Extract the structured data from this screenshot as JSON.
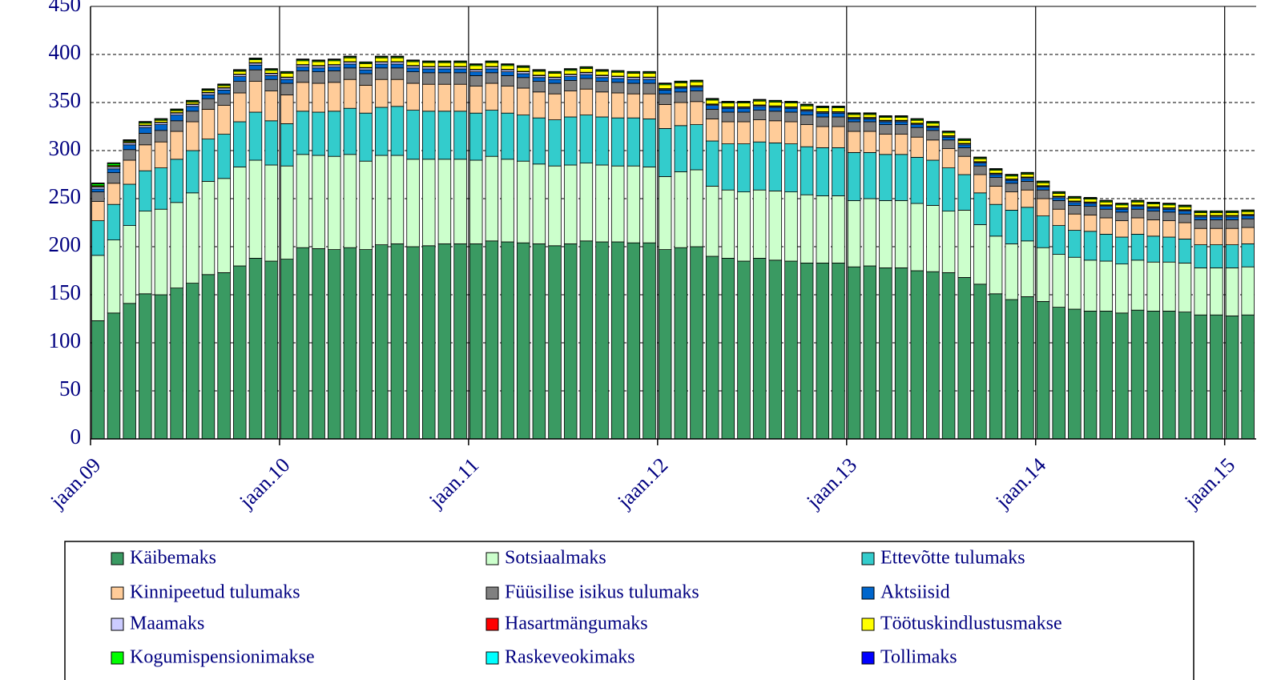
{
  "chart_data": {
    "type": "stacked_bar",
    "categories": [
      "jaan.09",
      null,
      null,
      null,
      null,
      null,
      null,
      null,
      null,
      null,
      null,
      null,
      "jaan.10",
      null,
      null,
      null,
      null,
      null,
      null,
      null,
      null,
      null,
      null,
      null,
      "jaan.11",
      null,
      null,
      null,
      null,
      null,
      null,
      null,
      null,
      null,
      null,
      null,
      "jaan.12",
      null,
      null,
      null,
      null,
      null,
      null,
      null,
      null,
      null,
      null,
      null,
      "jaan.13",
      null,
      null,
      null,
      null,
      null,
      null,
      null,
      null,
      null,
      null,
      null,
      "jaan.14",
      null,
      null,
      null,
      null,
      null,
      null,
      null,
      null,
      null,
      null,
      null,
      "jaan.15",
      null
    ],
    "ylim": [
      0,
      450
    ],
    "yticks": [
      0,
      50,
      100,
      150,
      200,
      250,
      300,
      350,
      400,
      450
    ],
    "grid": true,
    "legend": "bottom",
    "series": [
      {
        "name": "Käibemaks",
        "color": "#3a9a62",
        "values": [
          123,
          131,
          141,
          151,
          150,
          157,
          162,
          171,
          173,
          180,
          188,
          185,
          187,
          199,
          198,
          197,
          199,
          197,
          202,
          203,
          200,
          201,
          203,
          203,
          203,
          206,
          205,
          204,
          203,
          201,
          203,
          206,
          205,
          205,
          204,
          204,
          197,
          199,
          200,
          190,
          188,
          185,
          188,
          186,
          185,
          183,
          183,
          183,
          179,
          180,
          178,
          178,
          175,
          174,
          173,
          168,
          161,
          151,
          145,
          148,
          143,
          137,
          135,
          133,
          133,
          131,
          134,
          133,
          133,
          132,
          129,
          129,
          128,
          129
        ]
      },
      {
        "name": "Sotsiaalmaks",
        "color": "#ccffcc",
        "values": [
          68,
          76,
          81,
          86,
          89,
          89,
          94,
          97,
          98,
          103,
          102,
          100,
          97,
          97,
          97,
          97,
          97,
          92,
          93,
          92,
          91,
          90,
          88,
          88,
          87,
          88,
          86,
          85,
          83,
          83,
          82,
          81,
          80,
          79,
          80,
          79,
          76,
          79,
          80,
          73,
          71,
          72,
          71,
          72,
          72,
          71,
          70,
          70,
          69,
          70,
          70,
          70,
          70,
          69,
          64,
          70,
          62,
          60,
          58,
          58,
          56,
          55,
          54,
          53,
          52,
          51,
          52,
          51,
          51,
          51,
          49,
          49,
          50,
          50
        ]
      },
      {
        "name": "Ettevõtte tulumaks",
        "color": "#33cccc",
        "values": [
          36,
          37,
          43,
          42,
          43,
          45,
          44,
          44,
          46,
          47,
          50,
          46,
          44,
          45,
          45,
          47,
          48,
          50,
          50,
          51,
          51,
          50,
          50,
          50,
          49,
          48,
          48,
          48,
          48,
          48,
          50,
          50,
          50,
          50,
          50,
          50,
          50,
          48,
          47,
          47,
          48,
          50,
          50,
          50,
          50,
          50,
          50,
          50,
          50,
          48,
          48,
          48,
          48,
          47,
          45,
          37,
          33,
          33,
          35,
          35,
          33,
          30,
          28,
          30,
          28,
          28,
          27,
          27,
          26,
          25,
          24,
          24,
          24,
          24
        ]
      },
      {
        "name": "Kinnipeetud tulumaks",
        "color": "#ffcc99",
        "values": [
          20,
          22,
          25,
          27,
          27,
          29,
          30,
          31,
          30,
          30,
          32,
          31,
          30,
          30,
          30,
          30,
          30,
          29,
          29,
          28,
          28,
          28,
          28,
          28,
          28,
          28,
          28,
          28,
          27,
          27,
          27,
          27,
          26,
          26,
          25,
          26,
          25,
          24,
          24,
          23,
          23,
          23,
          23,
          23,
          23,
          23,
          22,
          22,
          22,
          22,
          21,
          21,
          21,
          21,
          20,
          19,
          19,
          19,
          19,
          18,
          18,
          17,
          17,
          17,
          17,
          17,
          17,
          17,
          17,
          17,
          17,
          17,
          17,
          17
        ]
      },
      {
        "name": "Füüsilise isikus tulumaks",
        "color": "#808080",
        "values": [
          10,
          11,
          11,
          12,
          12,
          11,
          11,
          11,
          12,
          12,
          12,
          12,
          12,
          12,
          12,
          12,
          12,
          12,
          12,
          12,
          12,
          12,
          12,
          12,
          11,
          11,
          11,
          11,
          11,
          11,
          11,
          11,
          11,
          11,
          11,
          11,
          11,
          11,
          11,
          10,
          10,
          10,
          10,
          10,
          10,
          10,
          10,
          10,
          10,
          10,
          10,
          10,
          10,
          10,
          9,
          9,
          9,
          9,
          9,
          9,
          9,
          9,
          9,
          9,
          9,
          9,
          9,
          9,
          9,
          9,
          9,
          9,
          9,
          9
        ]
      },
      {
        "name": "Aktsiisid",
        "color": "#0066cc",
        "values": [
          3,
          4,
          5,
          6,
          6,
          6,
          5,
          4,
          4,
          5,
          5,
          4,
          4,
          4,
          4,
          4,
          4,
          4,
          4,
          4,
          4,
          4,
          4,
          4,
          4,
          4,
          4,
          4,
          4,
          4,
          4,
          4,
          4,
          4,
          4,
          4,
          4,
          4,
          4,
          4,
          4,
          4,
          4,
          4,
          4,
          4,
          4,
          4,
          3,
          3,
          3,
          3,
          3,
          3,
          3,
          3,
          3,
          3,
          3,
          3,
          3,
          3,
          3,
          3,
          3,
          3,
          3,
          3,
          3,
          3,
          3,
          3,
          3,
          3
        ]
      },
      {
        "name": "Maamaks",
        "color": "#ccccff",
        "values": [
          2,
          2,
          2,
          2,
          2,
          2,
          2,
          2,
          2,
          2,
          2,
          2,
          2,
          2,
          2,
          2,
          2,
          2,
          2,
          2,
          2,
          2,
          2,
          2,
          2,
          2,
          2,
          2,
          2,
          2,
          2,
          2,
          2,
          2,
          2,
          2,
          1,
          1,
          1,
          1,
          1,
          1,
          1,
          1,
          1,
          1,
          1,
          1,
          1,
          1,
          1,
          1,
          1,
          1,
          1,
          1,
          1,
          1,
          1,
          1,
          1,
          1,
          1,
          1,
          1,
          1,
          1,
          1,
          1,
          1,
          1,
          1,
          1,
          1
        ]
      },
      {
        "name": "Hasartmängumaks",
        "color": "#ff0000",
        "values": [
          0.5,
          0.5,
          0.5,
          0.5,
          0.5,
          0.5,
          0.5,
          0.5,
          0.5,
          0.5,
          0.5,
          0.5,
          0.5,
          0.5,
          0.5,
          0.5,
          0.5,
          0.5,
          0.5,
          0.5,
          0.5,
          0.5,
          0.5,
          0.5,
          0.5,
          0.5,
          0.5,
          0.5,
          0.5,
          0.5,
          0.5,
          0.5,
          0.5,
          0.5,
          0.5,
          0.5,
          0.5,
          0.5,
          0.5,
          0.5,
          0.5,
          0.5,
          0.5,
          0.5,
          0.5,
          0.5,
          0.5,
          0.5,
          0.5,
          0.5,
          0.5,
          0.5,
          0.5,
          0.5,
          0.5,
          0.5,
          0.5,
          0.5,
          0.5,
          0.5,
          0.5,
          0.5,
          0.5,
          0.5,
          0.5,
          0.5,
          0.5,
          0.5,
          0.5,
          0.5,
          0.5,
          0.5,
          0.5,
          0.5
        ]
      },
      {
        "name": "Töötuskindlustusmakse",
        "color": "#ffff00",
        "values": [
          1,
          1,
          1,
          2,
          2,
          2,
          2,
          2,
          2,
          3,
          3,
          3,
          4,
          4,
          4,
          4,
          4,
          4,
          4,
          4,
          4,
          4,
          4,
          4,
          4,
          4,
          4,
          4,
          4,
          4,
          4,
          4,
          4,
          4,
          4,
          4,
          4,
          4,
          4,
          4,
          4,
          4,
          4,
          4,
          4,
          4,
          4,
          4,
          3,
          3,
          3,
          3,
          3,
          3,
          3,
          3,
          3,
          3,
          3,
          3,
          3,
          3,
          3,
          3,
          3,
          3,
          3,
          3,
          3,
          3,
          3,
          3,
          3,
          3
        ]
      },
      {
        "name": "Kogumispensionimakse",
        "color": "#00ff00",
        "values": [
          2,
          2,
          1,
          1,
          1,
          1,
          1,
          1,
          1,
          1,
          1,
          1,
          1,
          1,
          1,
          1,
          1,
          1,
          1,
          1,
          1,
          1,
          1,
          1,
          1,
          1,
          1,
          1,
          1,
          1,
          1,
          1,
          1,
          1,
          1,
          1,
          1,
          1,
          1,
          1,
          1,
          1,
          1,
          1,
          1,
          1,
          1,
          1,
          1,
          1,
          1,
          1,
          1,
          1,
          1,
          1,
          1,
          1,
          1,
          1,
          1,
          1,
          1,
          1,
          1,
          1,
          1,
          1,
          1,
          1,
          1,
          1,
          1,
          1
        ]
      },
      {
        "name": "Raskeveokimaks",
        "color": "#00ffff",
        "values": [
          0.3,
          0.3,
          0.3,
          0.3,
          0.3,
          0.3,
          0.3,
          0.3,
          0.3,
          0.3,
          0.3,
          0.3,
          0.3,
          0.3,
          0.3,
          0.3,
          0.3,
          0.3,
          0.3,
          0.3,
          0.3,
          0.3,
          0.3,
          0.3,
          0.3,
          0.3,
          0.3,
          0.3,
          0.3,
          0.3,
          0.3,
          0.3,
          0.3,
          0.3,
          0.3,
          0.3,
          0.3,
          0.3,
          0.3,
          0.3,
          0.3,
          0.3,
          0.3,
          0.3,
          0.3,
          0.3,
          0.3,
          0.3,
          0.3,
          0.3,
          0.3,
          0.3,
          0.3,
          0.3,
          0.3,
          0.3,
          0.3,
          0.3,
          0.3,
          0.3,
          0.3,
          0.3,
          0.3,
          0.3,
          0.3,
          0.3,
          0.3,
          0.3,
          0.3,
          0.3,
          0.3,
          0.3,
          0.3,
          0.3
        ]
      },
      {
        "name": "Tollimaks",
        "color": "#0000ff",
        "values": [
          0.5,
          0.5,
          0.5,
          0.5,
          0.5,
          0.5,
          0.5,
          0.5,
          0.5,
          0.5,
          0.5,
          0.5,
          0.5,
          0.5,
          0.5,
          0.5,
          0.5,
          0.5,
          0.5,
          0.5,
          0.5,
          0.5,
          0.5,
          0.5,
          0.5,
          0.5,
          0.5,
          0.5,
          0.5,
          0.5,
          0.5,
          0.5,
          0.5,
          0.5,
          0.5,
          0.5,
          0.5,
          0.5,
          0.5,
          0.5,
          0.5,
          0.5,
          0.5,
          0.5,
          0.5,
          0.5,
          0.5,
          0.5,
          0.5,
          0.5,
          0.5,
          0.5,
          0.5,
          0.5,
          0.5,
          0.5,
          0.5,
          0.5,
          0.5,
          0.5,
          0.5,
          0.5,
          0.5,
          0.5,
          0.5,
          0.5,
          0.5,
          0.5,
          0.5,
          0.5,
          0.5,
          0.5,
          0.5,
          0.5
        ]
      }
    ]
  }
}
